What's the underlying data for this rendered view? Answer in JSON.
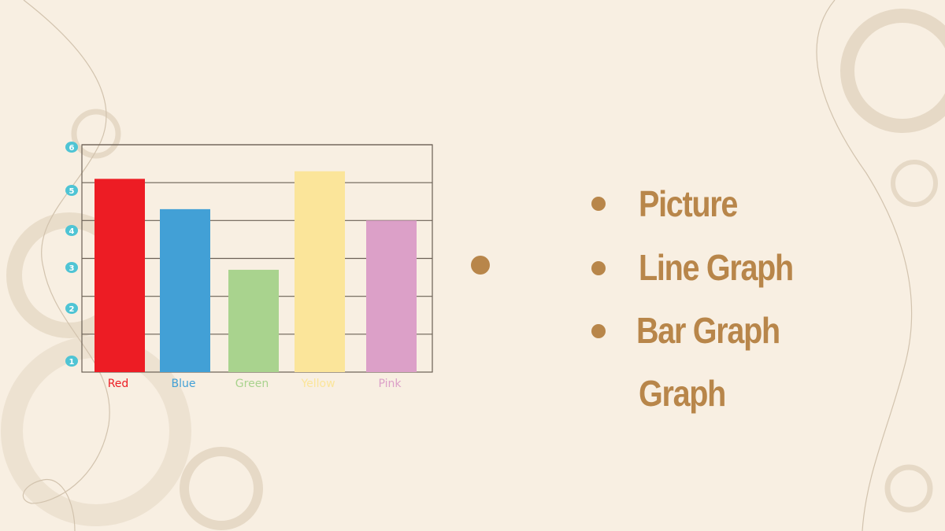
{
  "chart_data": {
    "type": "bar",
    "categories": [
      "Red",
      "Blue",
      "Green",
      "Yellow",
      "Pink"
    ],
    "values": [
      5.1,
      4.3,
      2.7,
      5.3,
      4.0
    ],
    "colors": [
      "#ed1c24",
      "#42a0d6",
      "#a9d38e",
      "#fbe59a",
      "#dca0c8"
    ],
    "yticks": [
      "1",
      "2",
      "3",
      "4",
      "5",
      "6"
    ],
    "ylim": [
      0,
      6
    ],
    "grid": true,
    "tick_badge_color": "#4fc4d4"
  },
  "slide": {
    "bullets": [
      "Picture",
      "Line Graph",
      "Graph",
      "Bar Graph"
    ],
    "text_color": "#b8864a"
  }
}
